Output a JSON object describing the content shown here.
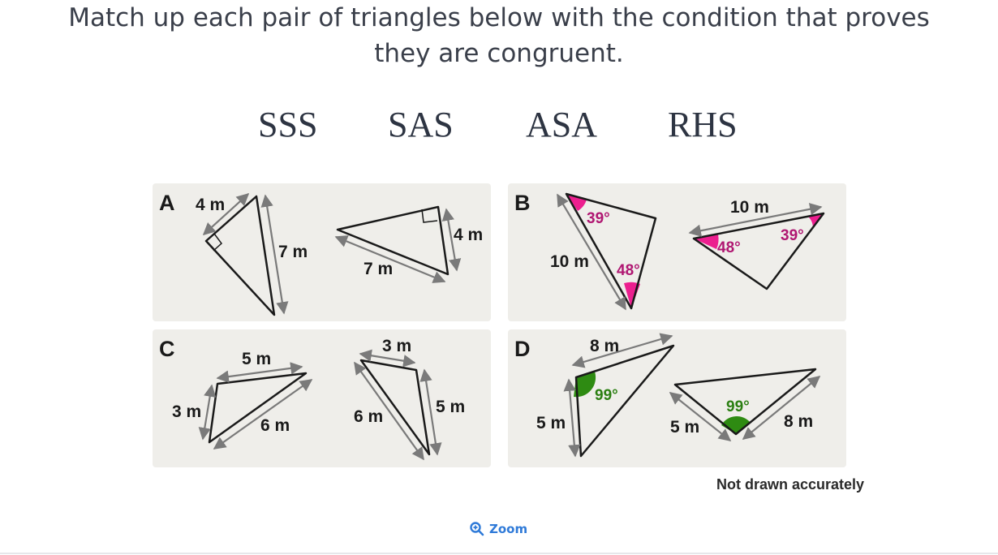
{
  "question": {
    "line1": "Match up each pair of triangles below with the condition that proves",
    "line2": "they are congruent."
  },
  "options": [
    "SSS",
    "SAS",
    "ASA",
    "RHS"
  ],
  "panels": {
    "A": {
      "letter": "A",
      "labels": {
        "t1_side_short": "4 m",
        "t1_side_long": "7 m",
        "t2_side_short": "4 m",
        "t2_side_long": "7 m"
      }
    },
    "B": {
      "letter": "B",
      "labels": {
        "t1_side": "10 m",
        "t1_angle_top": "39°",
        "t1_angle_bottom": "48°",
        "t2_side": "10 m",
        "t2_angle_left": "48°",
        "t2_angle_right": "39°"
      }
    },
    "C": {
      "letter": "C",
      "labels": {
        "t1_left": "3 m",
        "t1_top": "5 m",
        "t1_bottom": "6 m",
        "t2_top": "3 m",
        "t2_left": "6 m",
        "t2_right": "5 m"
      }
    },
    "D": {
      "letter": "D",
      "labels": {
        "t1_top": "8 m",
        "t1_left": "5 m",
        "t1_angle": "99°",
        "t2_left": "5 m",
        "t2_right": "8 m",
        "t2_angle": "99°"
      }
    }
  },
  "note": "Not drawn accurately",
  "zoom": {
    "label": "Zoom",
    "icon": "zoom-in-icon"
  },
  "colors": {
    "panel_bg": "#efeeea",
    "arrow": "#7a7a7a",
    "pink": "#ec1f8f",
    "pink_text": "#b01772",
    "green": "#2e8b12",
    "green_text": "#2b7f12"
  }
}
